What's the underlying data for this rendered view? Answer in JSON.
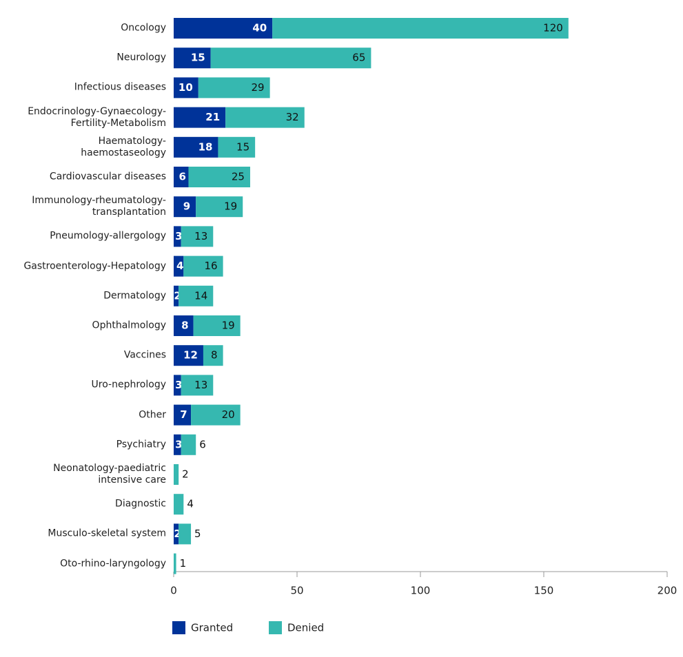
{
  "chart_data": {
    "type": "stacked-barh",
    "categories": [
      "Oncology",
      "Neurology",
      "Infectious diseases",
      "Endocrinology-Gynaecology-\nFertility-Metabolism",
      "Haematology-\nhaemostaseology",
      "Cardiovascular diseases",
      "Immunology-rheumatology-\ntransplantation",
      "Pneumology-allergology",
      "Gastroenterology-Hepatology",
      "Dermatology",
      "Ophthalmology",
      "Vaccines",
      "Uro-nephrology",
      "Other",
      "Psychiatry",
      "Neonatology-paediatric\nintensive care",
      "Diagnostic",
      "Musculo-skeletal system",
      "Oto-rhino-laryngology"
    ],
    "series": [
      {
        "name": "Granted",
        "color": "#003399",
        "values": [
          40,
          15,
          10,
          21,
          18,
          6,
          9,
          3,
          4,
          2,
          8,
          12,
          3,
          7,
          3,
          0,
          0,
          2,
          0
        ]
      },
      {
        "name": "Denied",
        "color": "#36b8b0",
        "values": [
          120,
          65,
          29,
          32,
          15,
          25,
          19,
          13,
          16,
          14,
          19,
          8,
          13,
          20,
          6,
          2,
          4,
          5,
          1
        ]
      }
    ],
    "xlim": [
      0,
      200
    ],
    "xticks": [
      0,
      50,
      100,
      150,
      200
    ]
  }
}
